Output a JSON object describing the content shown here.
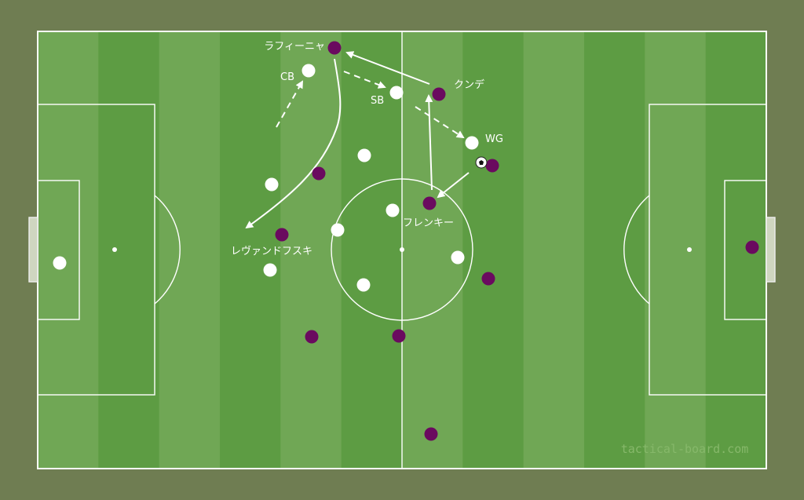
{
  "board": {
    "watermark": "tactical-board.com",
    "colors": {
      "background": "#6f7d52",
      "stripe_light": "#70a755",
      "stripe_dark": "#5d9c43",
      "lines": "#ffffff",
      "team_white": "#ffffff",
      "team_purple": "#6a0a5f"
    }
  },
  "labels": {
    "raphinha": "ラフィーニャ",
    "cb": "CB",
    "sb": "SB",
    "kounde": "クンデ",
    "wg": "WG",
    "frenkie": "フレンキー",
    "lewandowski": "レヴァンドフスキ"
  },
  "icons": {
    "ball": "soccer-ball-icon"
  }
}
